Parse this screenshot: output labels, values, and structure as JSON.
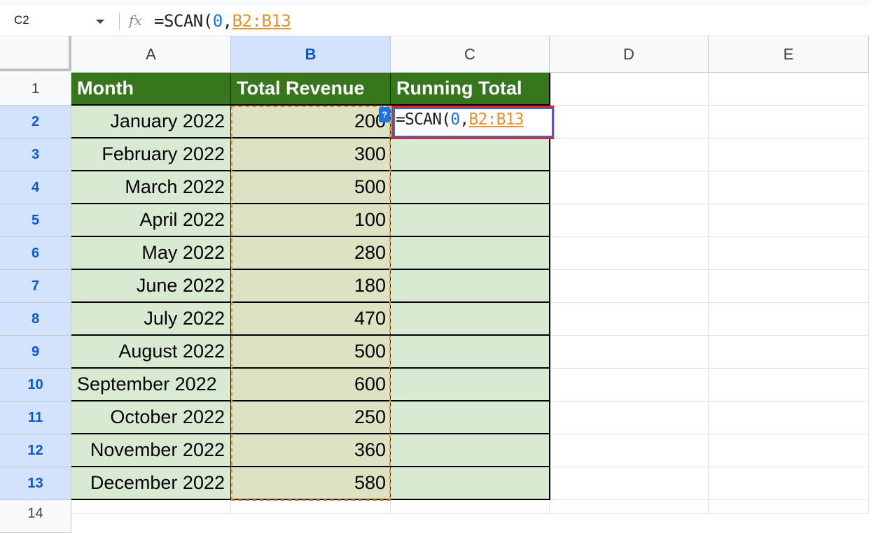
{
  "formula_bar": {
    "name_box": "C2",
    "fx_label": "fx",
    "formula_parts": {
      "prefix": "=SCAN(",
      "num": "0",
      "comma": ",",
      "ref": "B2:B13"
    }
  },
  "columns": [
    "A",
    "B",
    "C",
    "D",
    "E"
  ],
  "rows": [
    "1",
    "2",
    "3",
    "4",
    "5",
    "6",
    "7",
    "8",
    "9",
    "10",
    "11",
    "12",
    "13",
    "14"
  ],
  "headers": {
    "a": "Month",
    "b": "Total Revenue",
    "c": "Running Total"
  },
  "data": [
    {
      "month": "January 2022",
      "revenue": "200"
    },
    {
      "month": "February 2022",
      "revenue": "300"
    },
    {
      "month": "March 2022",
      "revenue": "500"
    },
    {
      "month": "April 2022",
      "revenue": "100"
    },
    {
      "month": "May 2022",
      "revenue": "280"
    },
    {
      "month": "June 2022",
      "revenue": "180"
    },
    {
      "month": "July 2022",
      "revenue": "470"
    },
    {
      "month": "August 2022",
      "revenue": "500"
    },
    {
      "month": "September 2022",
      "revenue": "600"
    },
    {
      "month": "October 2022",
      "revenue": "250"
    },
    {
      "month": "November 2022",
      "revenue": "360"
    },
    {
      "month": "December 2022",
      "revenue": "580"
    }
  ],
  "editing_cell": {
    "parts": {
      "prefix": "=SCAN(",
      "num": "0",
      "comma": ",",
      "ref": "B2:B13"
    }
  },
  "help_chip": "?",
  "colors": {
    "header_green": "#38761d",
    "light_green": "#d9ead3",
    "selection_blue": "#d3e3fd",
    "highlight_red": "#e2242b",
    "ref_orange": "#e8912d",
    "num_blue": "#1a73e8"
  }
}
